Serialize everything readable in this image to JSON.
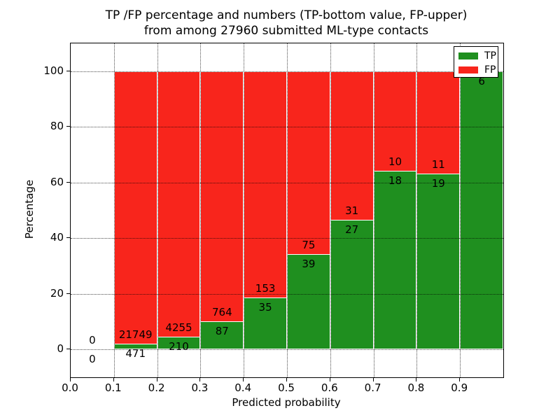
{
  "figure": {
    "kind": "matplotlib-static-plot"
  },
  "chart_data": {
    "type": "bar",
    "stacked": true,
    "title": "TP /FP percentage and numbers (TP-bottom value, FP-upper)\nfrom among 27960 submitted ML-type contacts",
    "xlabel": "Predicted probability",
    "ylabel": "Percentage",
    "total_submitted_contacts": 27960,
    "xlim": [
      0.0,
      1.0
    ],
    "ylim": [
      -10,
      110
    ],
    "x_tick_labels": [
      "0.0",
      "0.1",
      "0.2",
      "0.3",
      "0.4",
      "0.5",
      "0.6",
      "0.7",
      "0.8",
      "0.9"
    ],
    "y_tick_values": [
      "0",
      "20",
      "40",
      "60",
      "80",
      "100"
    ],
    "grid": "dotted, drawn above bars",
    "bar_width": 0.1,
    "categories": [
      "0.0-0.1",
      "0.1-0.2",
      "0.2-0.3",
      "0.3-0.4",
      "0.4-0.5",
      "0.5-0.6",
      "0.6-0.7",
      "0.7-0.8",
      "0.8-0.9",
      "0.9-1.0"
    ],
    "series": [
      {
        "name": "TP",
        "values": [
          0,
          471,
          210,
          87,
          35,
          39,
          27,
          18,
          19,
          6
        ]
      },
      {
        "name": "FP",
        "values": [
          0,
          21749,
          4255,
          764,
          153,
          75,
          31,
          10,
          11,
          0
        ]
      }
    ],
    "percent_tp_of_bin": [
      0,
      2.12,
      4.7,
      10.22,
      18.62,
      34.21,
      46.55,
      64.29,
      63.33,
      100
    ],
    "legend": {
      "position": "upper right",
      "entries": [
        {
          "label": "TP",
          "color": "#1f8f1f"
        },
        {
          "label": "FP",
          "color": "#f8251c"
        }
      ]
    }
  },
  "colors": {
    "tp_green": "#1f8f1f",
    "fp_red": "#f8251c",
    "background": "#ffffff",
    "text": "#000000",
    "bar_edge": "#ffffff"
  }
}
